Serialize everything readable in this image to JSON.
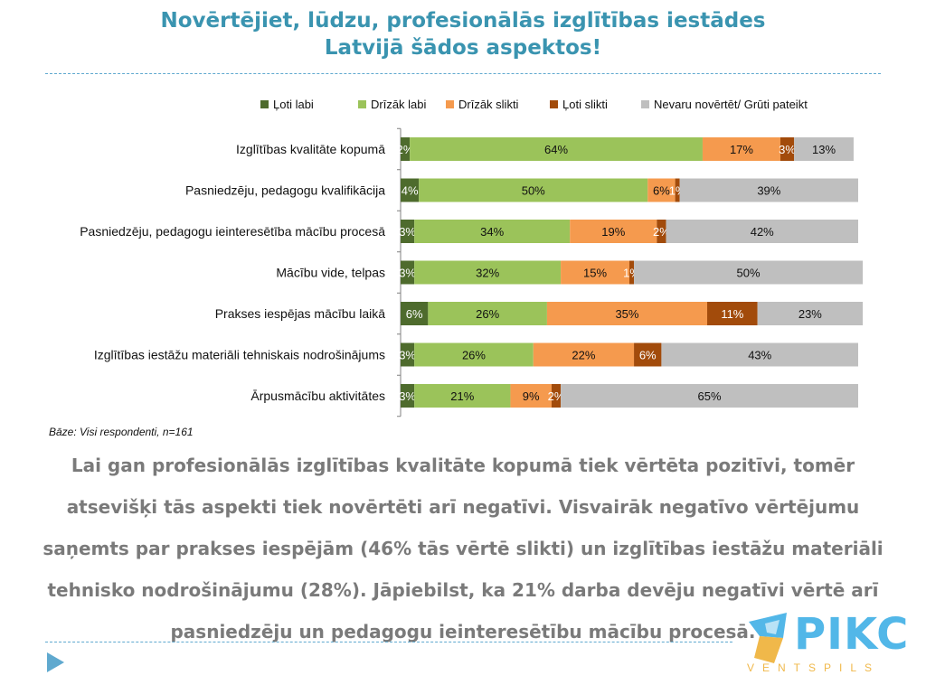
{
  "title_line1": "Novērtējiet, lūdzu, profesionālās izglītības iestādes",
  "title_line2": "Latvijā šādos aspektos!",
  "chart_data": {
    "type": "bar",
    "orientation": "horizontal",
    "stacked": true,
    "unit": "%",
    "xlim": [
      0,
      100
    ],
    "legend_position": "top-right",
    "categories": [
      "Izglītības kvalitāte kopumā",
      "Pasniedzēju, pedagogu kvalifikācija",
      "Pasniedzēju, pedagogu ieinteresētība mācību procesā",
      "Mācību vide, telpas",
      "Prakses iespējas mācību laikā",
      "Izglītības iestāžu materiāli tehniskais nodrošinājums",
      "Ārpusmācību aktivitātes"
    ],
    "series": [
      {
        "name": "Ļoti labi",
        "color": "#4e6b2d",
        "label_color": "#ffffff",
        "values": [
          2,
          4,
          3,
          3,
          6,
          3,
          3
        ]
      },
      {
        "name": "Drīzāk labi",
        "color": "#9bc35a",
        "label_color": "#111111",
        "values": [
          64,
          50,
          34,
          32,
          26,
          26,
          21
        ]
      },
      {
        "name": "Drīzāk slikti",
        "color": "#f59a4e",
        "label_color": "#111111",
        "values": [
          17,
          6,
          19,
          15,
          35,
          22,
          9
        ]
      },
      {
        "name": "Ļoti slikti",
        "color": "#a24b0b",
        "label_color": "#ffffff",
        "values": [
          3,
          1,
          2,
          1,
          11,
          6,
          2
        ]
      },
      {
        "name": "Nevaru novērtēt/ Grūti pateikt",
        "color": "#bfbfbf",
        "label_color": "#111111",
        "values": [
          13,
          39,
          42,
          50,
          23,
          43,
          65
        ]
      }
    ]
  },
  "base_note": "Bāze: Visi respondenti, n=161",
  "summary": "Lai gan profesionālās izglītības kvalitāte kopumā tiek vērtēta pozitīvi, tomēr atsevišķi tās aspekti tiek novērtēti arī negatīvi. Visvairāk negatīvo vērtējumu saņemts par prakses iespējām (46% tās vērtē slikti) un izglītības iestāžu materiāli tehnisko nodrošinājumu (28%). Jāpiebilst, ka 21% darba devēju negatīvi vērtē arī pasniedzēju un pedagogu ieinteresētību mācību procesā.",
  "logo": {
    "word": "PIKC",
    "sub": "VENTSPILS",
    "colors": {
      "blue": "#52b7e8",
      "orange": "#f0b84a"
    }
  },
  "icons": {
    "nav": "play-icon"
  }
}
